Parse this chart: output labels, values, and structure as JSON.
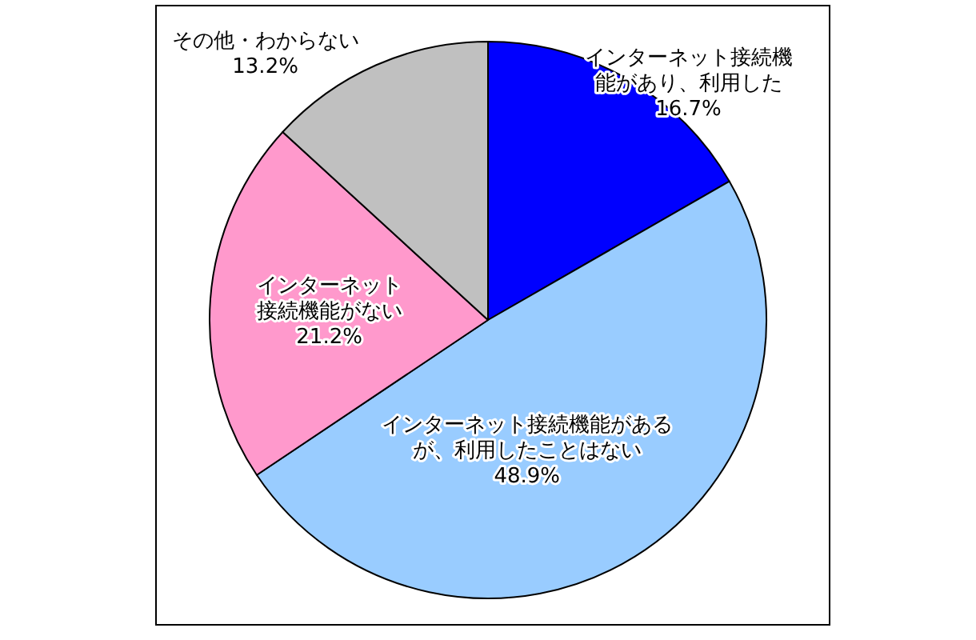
{
  "chart_data": {
    "type": "pie",
    "categories": [
      "インターネット接続機能があり、利用した",
      "インターネット接続機能があるが、利用したことはない",
      "インターネット接続機能がない",
      "その他・わからない"
    ],
    "values": [
      16.7,
      48.9,
      21.2,
      13.2
    ],
    "colors": [
      "#0000ff",
      "#99ccff",
      "#ff99cc",
      "#c0c0c0"
    ],
    "value_labels": [
      "16.7%",
      "48.9%",
      "21.2%",
      "13.2%"
    ]
  }
}
